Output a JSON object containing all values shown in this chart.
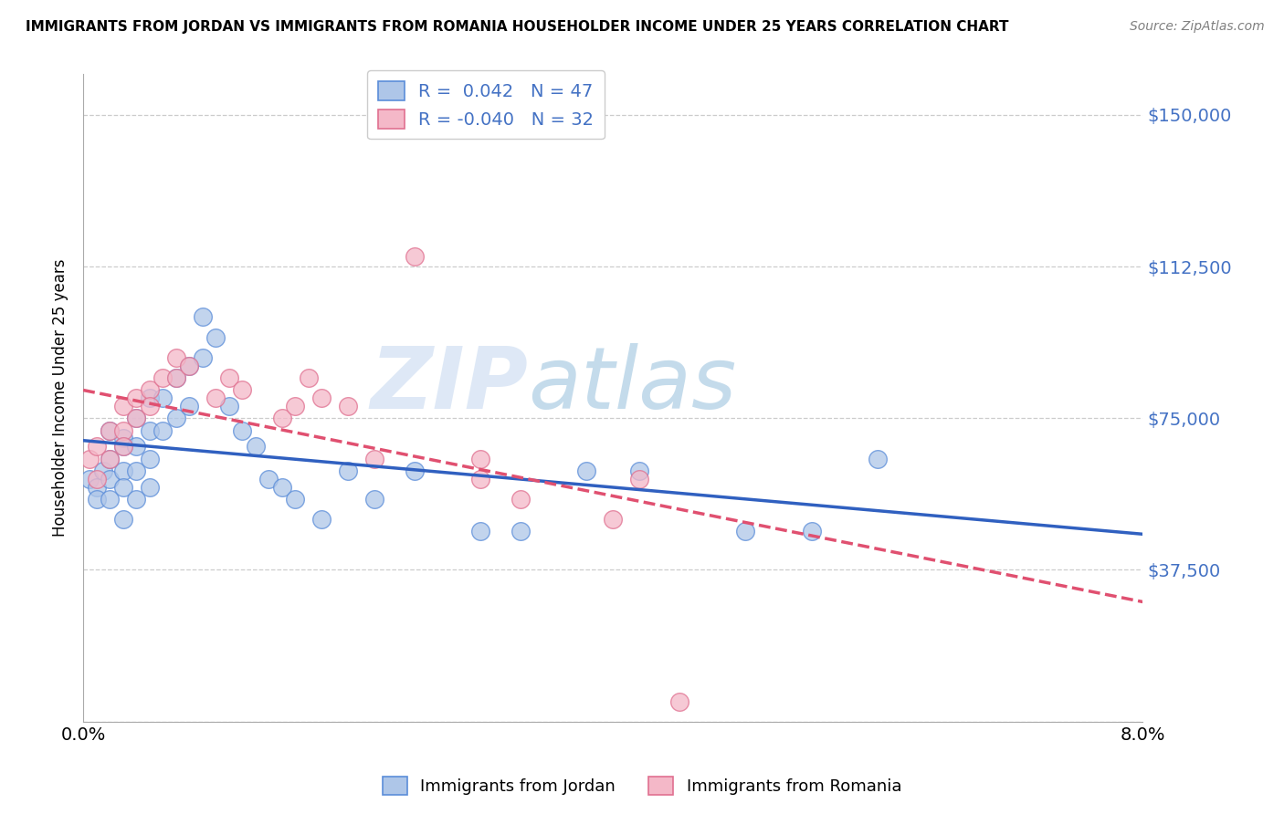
{
  "title": "IMMIGRANTS FROM JORDAN VS IMMIGRANTS FROM ROMANIA HOUSEHOLDER INCOME UNDER 25 YEARS CORRELATION CHART",
  "source": "Source: ZipAtlas.com",
  "ylabel": "Householder Income Under 25 years",
  "jordan_R": 0.042,
  "jordan_N": 47,
  "romania_R": -0.04,
  "romania_N": 32,
  "jordan_color": "#aec6e8",
  "romania_color": "#f4b8c8",
  "jordan_edge_color": "#5b8dd9",
  "romania_edge_color": "#e07090",
  "trend_jordan_color": "#3060c0",
  "trend_romania_color": "#e05070",
  "xlim": [
    0.0,
    0.08
  ],
  "ylim": [
    0,
    160000
  ],
  "yticks": [
    0,
    37500,
    75000,
    112500,
    150000
  ],
  "ytick_labels": [
    "",
    "$37,500",
    "$75,000",
    "$112,500",
    "$150,000"
  ],
  "xtick_vals": [
    0.0,
    0.01,
    0.02,
    0.03,
    0.04,
    0.05,
    0.06,
    0.07,
    0.08
  ],
  "watermark_zip": "ZIP",
  "watermark_atlas": "atlas",
  "jordan_x": [
    0.0005,
    0.001,
    0.001,
    0.0015,
    0.002,
    0.002,
    0.002,
    0.002,
    0.003,
    0.003,
    0.003,
    0.003,
    0.003,
    0.004,
    0.004,
    0.004,
    0.004,
    0.005,
    0.005,
    0.005,
    0.005,
    0.006,
    0.006,
    0.007,
    0.007,
    0.008,
    0.008,
    0.009,
    0.009,
    0.01,
    0.011,
    0.012,
    0.013,
    0.014,
    0.015,
    0.016,
    0.018,
    0.02,
    0.022,
    0.025,
    0.03,
    0.033,
    0.038,
    0.042,
    0.05,
    0.055,
    0.06
  ],
  "jordan_y": [
    60000,
    58000,
    55000,
    62000,
    65000,
    72000,
    60000,
    55000,
    70000,
    68000,
    62000,
    58000,
    50000,
    75000,
    68000,
    62000,
    55000,
    80000,
    72000,
    65000,
    58000,
    80000,
    72000,
    85000,
    75000,
    88000,
    78000,
    90000,
    100000,
    95000,
    78000,
    72000,
    68000,
    60000,
    58000,
    55000,
    50000,
    62000,
    55000,
    62000,
    47000,
    47000,
    62000,
    62000,
    47000,
    47000,
    65000
  ],
  "romania_x": [
    0.0005,
    0.001,
    0.001,
    0.002,
    0.002,
    0.003,
    0.003,
    0.003,
    0.004,
    0.004,
    0.005,
    0.005,
    0.006,
    0.007,
    0.007,
    0.008,
    0.01,
    0.011,
    0.012,
    0.015,
    0.016,
    0.017,
    0.018,
    0.02,
    0.022,
    0.025,
    0.03,
    0.033,
    0.04,
    0.042,
    0.045,
    0.03
  ],
  "romania_y": [
    65000,
    60000,
    68000,
    72000,
    65000,
    78000,
    72000,
    68000,
    80000,
    75000,
    82000,
    78000,
    85000,
    90000,
    85000,
    88000,
    80000,
    85000,
    82000,
    75000,
    78000,
    85000,
    80000,
    78000,
    65000,
    115000,
    60000,
    55000,
    50000,
    60000,
    5000,
    65000
  ]
}
